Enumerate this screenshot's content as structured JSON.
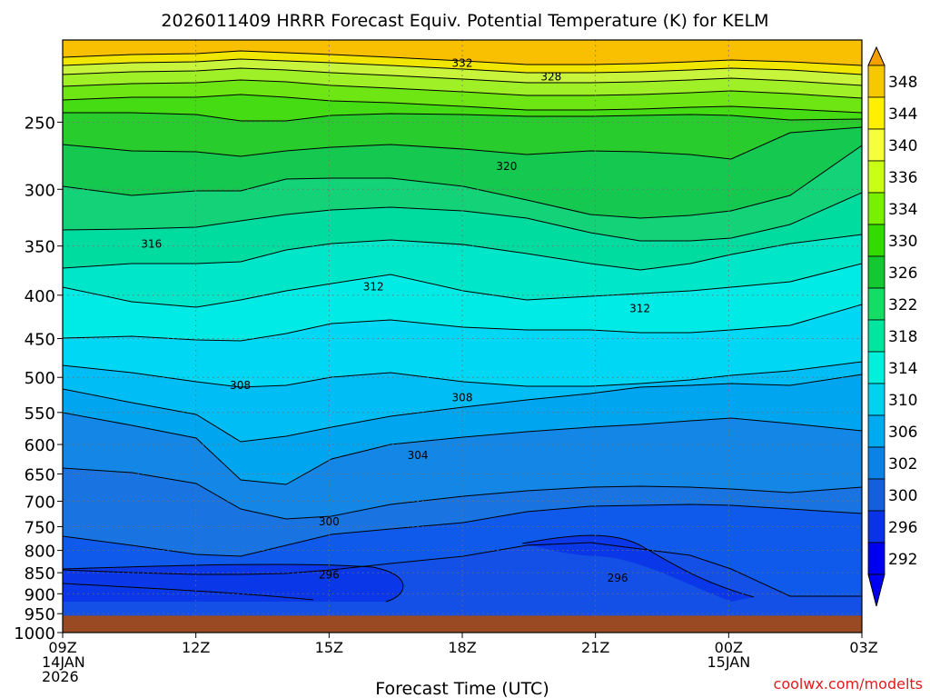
{
  "chart_data": {
    "type": "heatmap",
    "title": "2026011409 HRRR Forecast Equiv. Potential Temperature (K) for KELM",
    "xlabel": "Forecast Time (UTC)",
    "ylabel": "",
    "x_ticks": [
      {
        "hour": 0,
        "lines": [
          "09Z",
          "14JAN",
          "2026"
        ]
      },
      {
        "hour": 3,
        "lines": [
          "12Z"
        ]
      },
      {
        "hour": 6,
        "lines": [
          "15Z"
        ]
      },
      {
        "hour": 9,
        "lines": [
          "18Z"
        ]
      },
      {
        "hour": 12,
        "lines": [
          "21Z"
        ]
      },
      {
        "hour": 15,
        "lines": [
          "00Z",
          "15JAN"
        ]
      },
      {
        "hour": 18,
        "lines": [
          "03Z"
        ]
      }
    ],
    "xlim": [
      0,
      18
    ],
    "y_ticks": [
      "250",
      "300",
      "350",
      "400",
      "450",
      "500",
      "550",
      "600",
      "650",
      "700",
      "750",
      "800",
      "850",
      "900",
      "950",
      "1000"
    ],
    "ylim_hPa": [
      1000,
      200
    ],
    "y_scale": "log",
    "surface_pressure_hPa": 955,
    "colorbar": {
      "labels": [
        "348",
        "344",
        "340",
        "336",
        "334",
        "330",
        "326",
        "322",
        "318",
        "314",
        "310",
        "306",
        "302",
        "300",
        "296",
        "292"
      ],
      "colors": [
        "#f5a000",
        "#f5c800",
        "#fff000",
        "#f5ff3c",
        "#c8ff14",
        "#78f000",
        "#32dc00",
        "#14c832",
        "#14dc64",
        "#00e6a0",
        "#00f0dc",
        "#00d2f0",
        "#00aaf0",
        "#0a82e6",
        "#1460dc",
        "#0a32e6",
        "#0000f0"
      ]
    },
    "contour_labels": [
      {
        "text": "332",
        "hour": 9.0,
        "hPa": 213
      },
      {
        "text": "328",
        "hour": 11.0,
        "hPa": 221
      },
      {
        "text": "320",
        "hour": 10.0,
        "hPa": 282
      },
      {
        "text": "316",
        "hour": 2.0,
        "hPa": 348
      },
      {
        "text": "312",
        "hour": 7.0,
        "hPa": 391
      },
      {
        "text": "312",
        "hour": 13.0,
        "hPa": 415
      },
      {
        "text": "308",
        "hour": 4.0,
        "hPa": 511
      },
      {
        "text": "308",
        "hour": 9.0,
        "hPa": 528
      },
      {
        "text": "304",
        "hour": 8.0,
        "hPa": 618
      },
      {
        "text": "300",
        "hour": 6.0,
        "hPa": 740
      },
      {
        "text": "296",
        "hour": 6.0,
        "hPa": 855
      },
      {
        "text": "296",
        "hour": 12.5,
        "hPa": 862
      }
    ]
  },
  "footer": {
    "site": "coolwx.com/modelts",
    "site_color": "#e21a1a"
  }
}
